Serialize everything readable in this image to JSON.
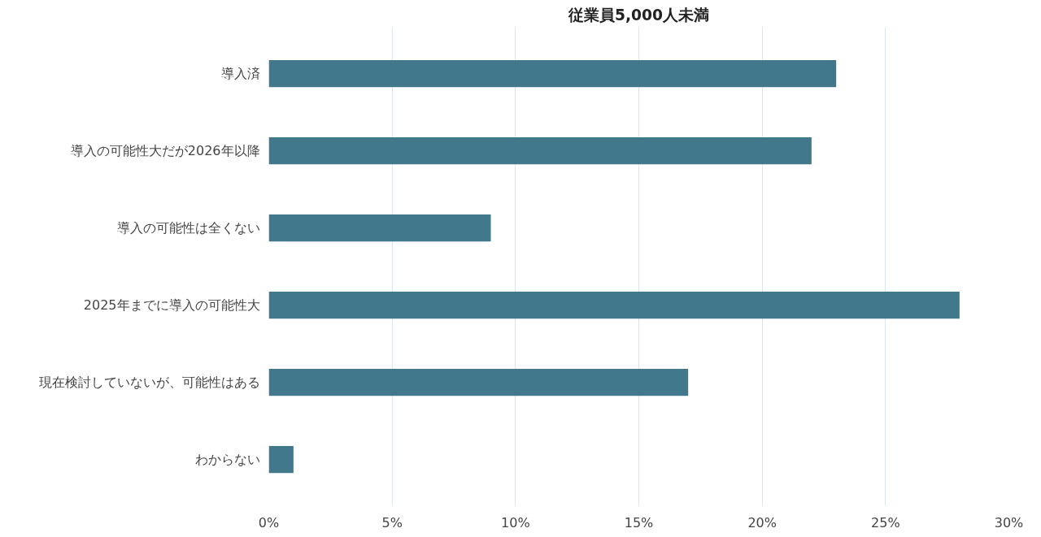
{
  "chart_data": {
    "type": "bar",
    "orientation": "horizontal",
    "title": "従業員5,000人未満",
    "categories": [
      "導入済",
      "導入の可能性大だが2026年以降",
      "導入の可能性は全くない",
      "2025年までに導入の可能性大",
      "現在検討していないが、可能性はある",
      "わからない"
    ],
    "values": [
      23,
      22,
      9,
      28,
      17,
      1
    ],
    "color": "#41788b",
    "xlim": [
      0,
      30
    ],
    "xticks": [
      {
        "value": 0,
        "label": "0%"
      },
      {
        "value": 5,
        "label": "5%"
      },
      {
        "value": 10,
        "label": "10%"
      },
      {
        "value": 15,
        "label": "15%"
      },
      {
        "value": 20,
        "label": "20%"
      },
      {
        "value": 25,
        "label": "25%"
      },
      {
        "value": 30,
        "label": "30%"
      }
    ],
    "grid": "x"
  }
}
